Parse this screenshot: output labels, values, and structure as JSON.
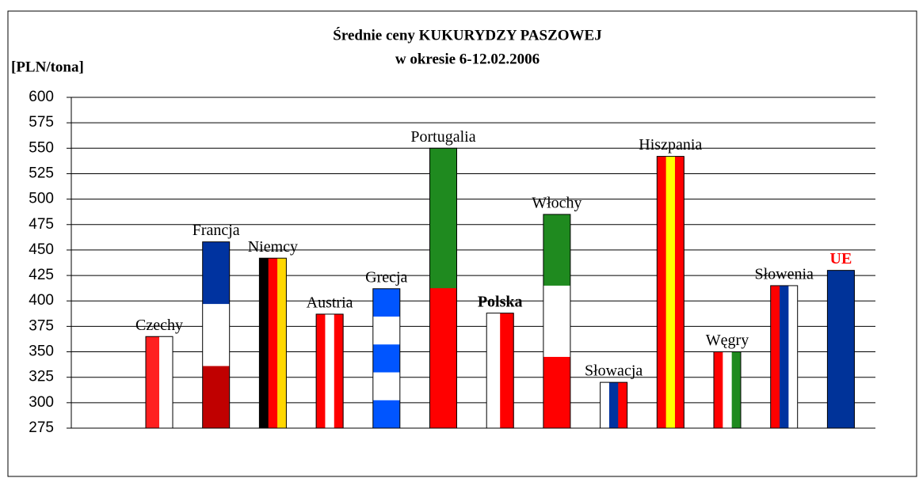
{
  "chart_data": {
    "type": "bar",
    "title": "Średnie ceny KUKURYDZY PASZOWEJ",
    "subtitle": "w okresie 6-12.02.2006",
    "y_label": "[PLN/tona]",
    "categories": [
      "Czechy",
      "Francja",
      "Niemcy",
      "Austria",
      "Grecja",
      "Portugalia",
      "Polska",
      "Włochy",
      "Słowacja",
      "Hiszpania",
      "Węgry",
      "Słowenia",
      "UE"
    ],
    "values": [
      365,
      458,
      442,
      387,
      412,
      550,
      388,
      485,
      320,
      542,
      350,
      415,
      430
    ],
    "colors": [
      [
        "#ff2020",
        "#ffffff"
      ],
      [
        "#0033a0",
        "#ffffff",
        "#c00000"
      ],
      [
        "#000000",
        "#ff0000",
        "#ffd700"
      ],
      [
        "#ff0000",
        "#ffffff",
        "#ff0000"
      ],
      [
        "#0055ff",
        "#ffffff",
        "#0055ff",
        "#ffffff",
        "#0055ff"
      ],
      [
        "#1f8a1f",
        "#ff0000"
      ],
      [
        "#ffffff",
        "#ff0000"
      ],
      [
        "#1f8a1f",
        "#ffffff",
        "#ff0000"
      ],
      [
        "#ffffff",
        "#0033a0",
        "#ff0000"
      ],
      [
        "#ff0000",
        "#ffff00",
        "#ff0000"
      ],
      [
        "#ff0000",
        "#ffffff",
        "#1f8a1f"
      ],
      [
        "#ff0000",
        "#0033a0",
        "#ffffff"
      ],
      [
        "#003399"
      ]
    ],
    "stripe_direction": [
      "v",
      "h",
      "v",
      "v",
      "h",
      "h",
      "v",
      "h",
      "v",
      "v",
      "v",
      "v",
      "v"
    ],
    "ylim": [
      275,
      600
    ],
    "yticks": [
      275,
      300,
      325,
      350,
      375,
      400,
      425,
      450,
      475,
      500,
      525,
      550,
      575,
      600
    ],
    "grid": true
  }
}
